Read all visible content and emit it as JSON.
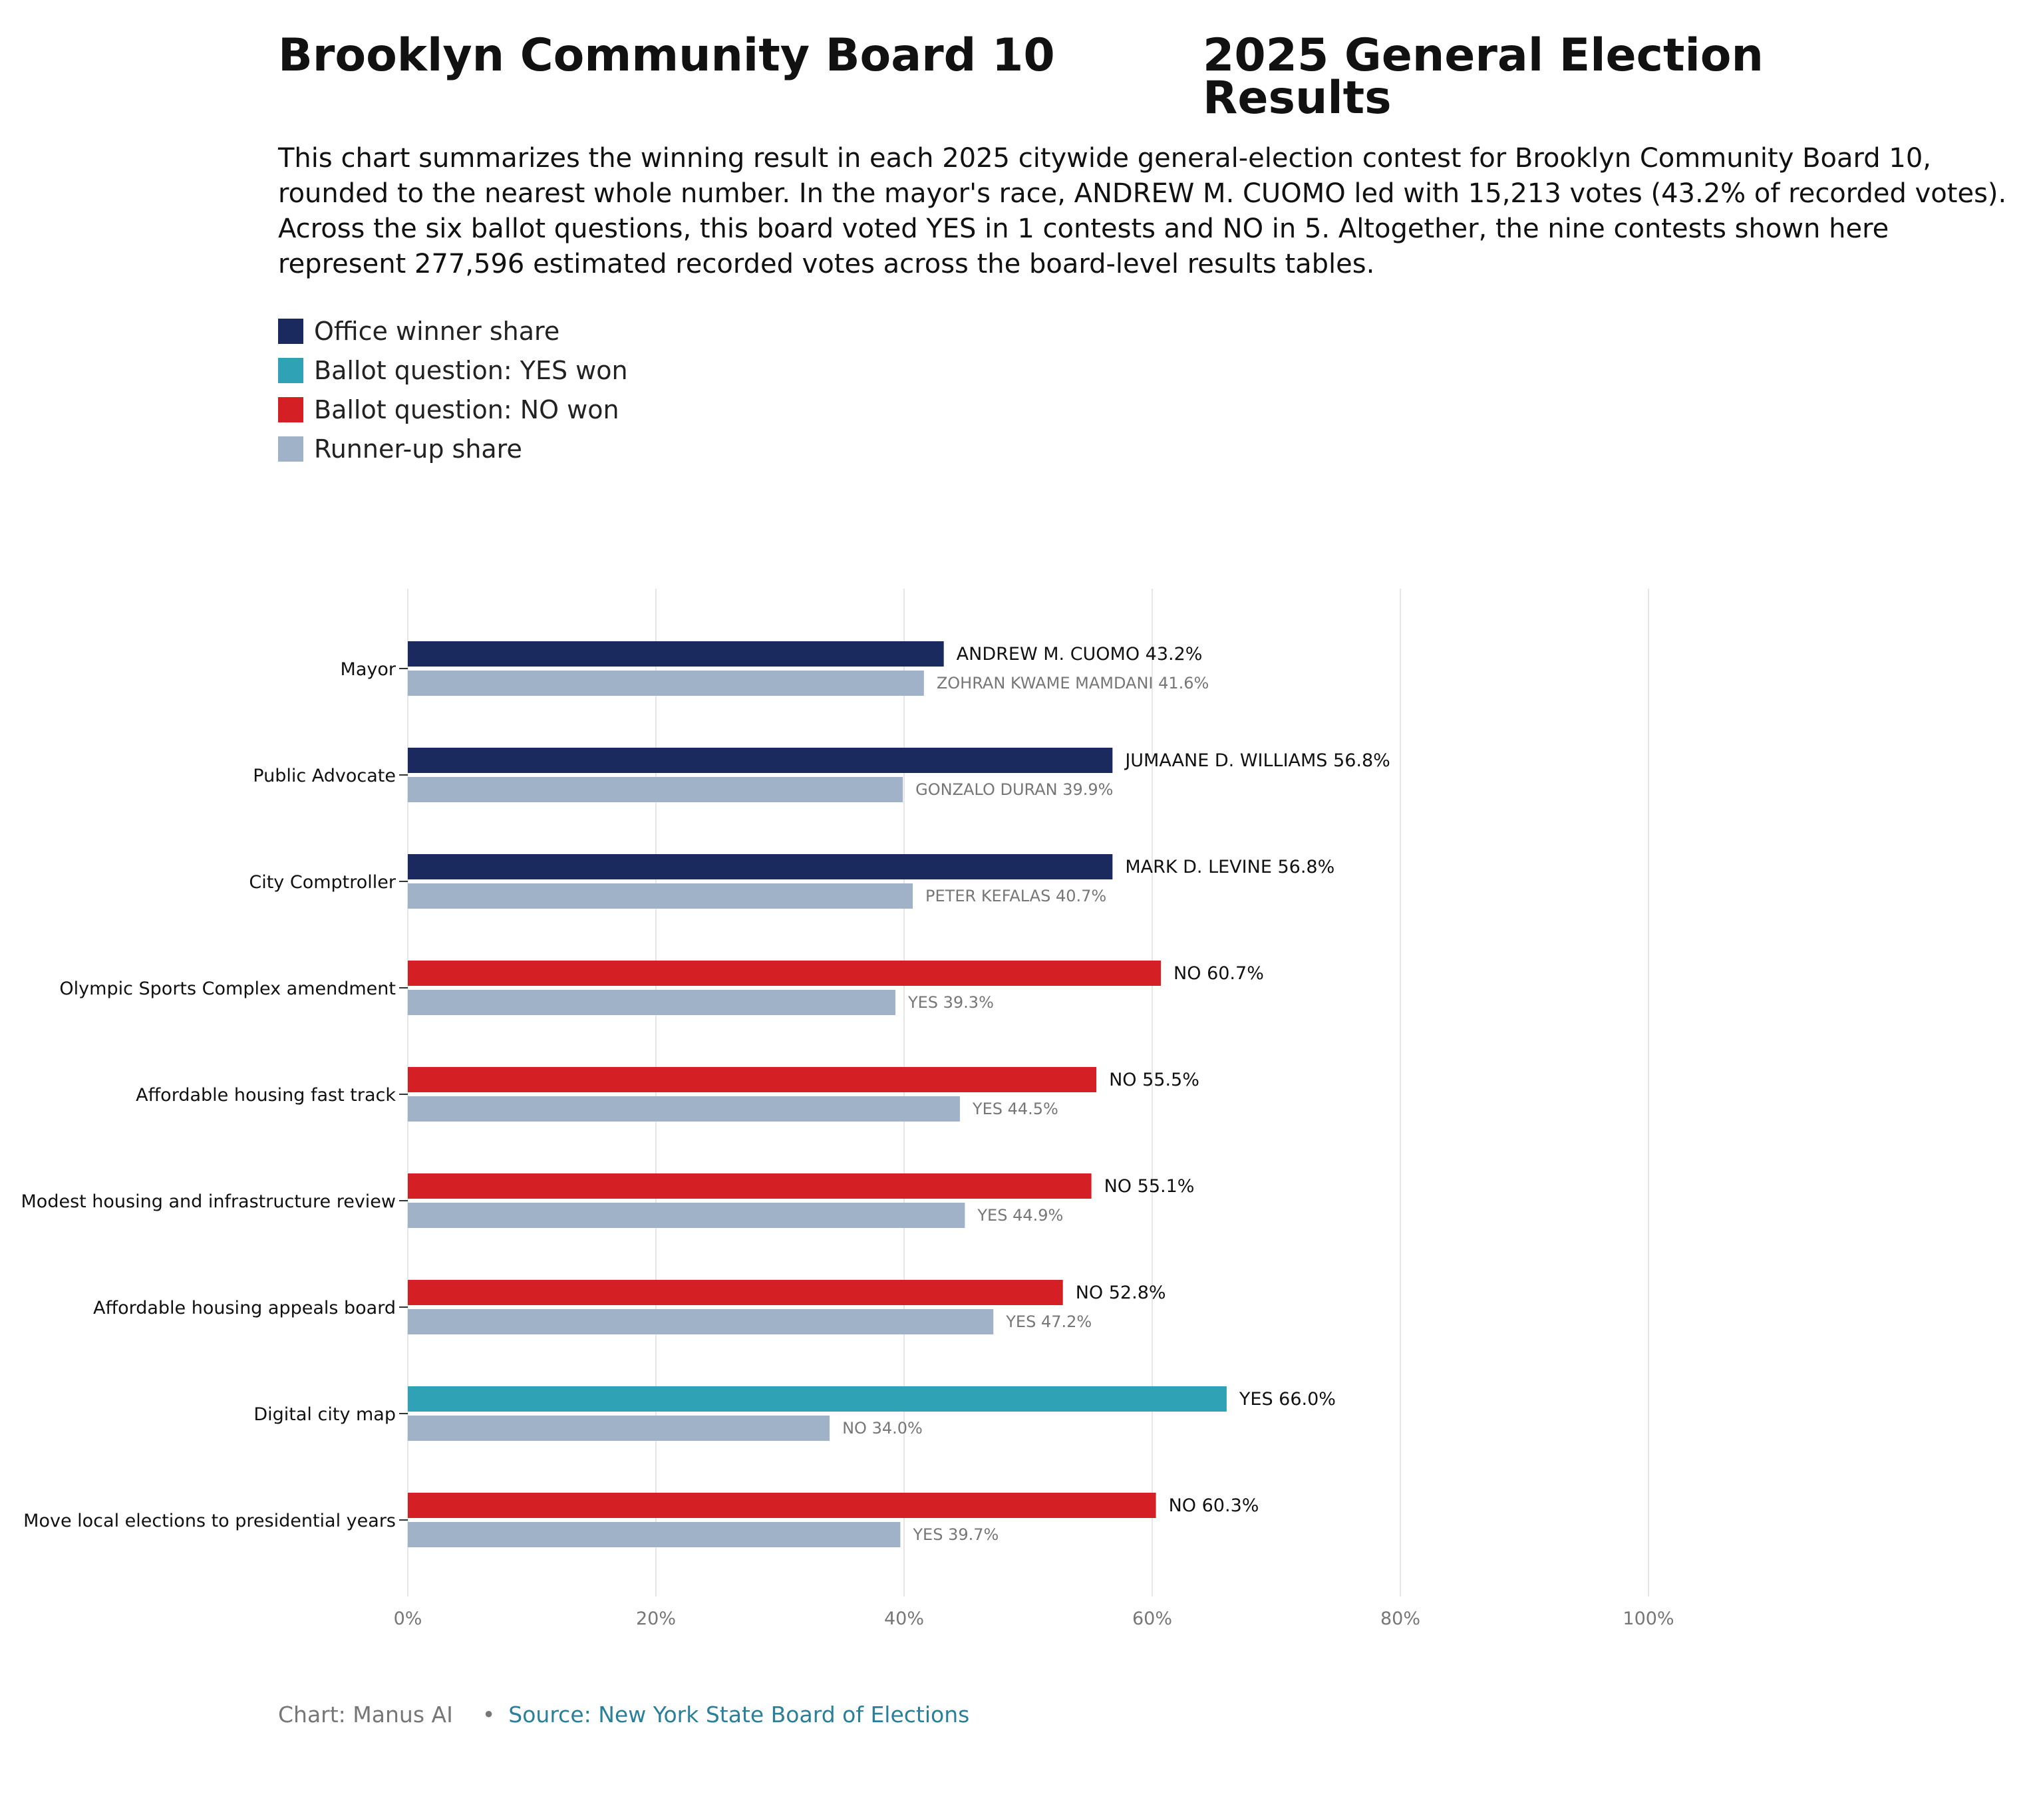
{
  "title_left": "Brooklyn Community Board 10",
  "title_right": "2025 General Election Results",
  "subtitle": "This chart summarizes the winning result in each 2025 citywide general-election contest for Brooklyn Community Board 10, rounded to the nearest whole number. In the mayor's race, ANDREW M. CUOMO led with 15,213 votes (43.2% of recorded votes). Across the six ballot questions, this board voted YES in 1 contests and NO in 5. Altogether, the nine contests shown here represent 277,596 estimated recorded votes across the board-level results tables.",
  "legend": [
    {
      "label": "Office winner share",
      "color": "#1b2a5e"
    },
    {
      "label": "Ballot question: YES won",
      "color": "#2fa3b5"
    },
    {
      "label": "Ballot question: NO won",
      "color": "#d42024"
    },
    {
      "label": "Runner-up share",
      "color": "#a0b2c8"
    }
  ],
  "footer": {
    "credit": "Chart: Manus AI",
    "separator": "•",
    "source": "Source: New York State Board of Elections"
  },
  "chart_data": {
    "type": "bar",
    "orientation": "horizontal",
    "xlim": [
      0,
      100
    ],
    "x_ticks": [
      "0%",
      "20%",
      "40%",
      "60%",
      "80%",
      "100%"
    ],
    "grid": "vertical",
    "colors": {
      "office": "#1b2a5e",
      "yes": "#2fa3b5",
      "no": "#d42024",
      "runner": "#a0b2c8",
      "winner_label": "#111111",
      "runner_label": "#777777",
      "tick_label": "#777777",
      "grid": "#e6e6e6"
    },
    "categories": [
      {
        "name": "Mayor",
        "kind": "office",
        "winner": {
          "label": "ANDREW M. CUOMO 43.2%",
          "value": 43.2
        },
        "runner_up": {
          "label": "ZOHRAN KWAME MAMDANI 41.6%",
          "value": 41.6
        }
      },
      {
        "name": "Public Advocate",
        "kind": "office",
        "winner": {
          "label": "JUMAANE D. WILLIAMS 56.8%",
          "value": 56.8
        },
        "runner_up": {
          "label": "GONZALO DURAN 39.9%",
          "value": 39.9
        }
      },
      {
        "name": "City Comptroller",
        "kind": "office",
        "winner": {
          "label": "MARK D. LEVINE 56.8%",
          "value": 56.8
        },
        "runner_up": {
          "label": "PETER KEFALAS 40.7%",
          "value": 40.7
        }
      },
      {
        "name": "Olympic Sports Complex amendment",
        "kind": "no",
        "winner": {
          "label": "NO 60.7%",
          "value": 60.7
        },
        "runner_up": {
          "label": "YES 39.3%",
          "value": 39.3
        }
      },
      {
        "name": "Affordable housing fast track",
        "kind": "no",
        "winner": {
          "label": "NO 55.5%",
          "value": 55.5
        },
        "runner_up": {
          "label": "YES 44.5%",
          "value": 44.5
        }
      },
      {
        "name": "Modest housing and infrastructure review",
        "kind": "no",
        "winner": {
          "label": "NO 55.1%",
          "value": 55.1
        },
        "runner_up": {
          "label": "YES 44.9%",
          "value": 44.9
        }
      },
      {
        "name": "Affordable housing appeals board",
        "kind": "no",
        "winner": {
          "label": "NO 52.8%",
          "value": 52.8
        },
        "runner_up": {
          "label": "YES 47.2%",
          "value": 47.2
        }
      },
      {
        "name": "Digital city map",
        "kind": "yes",
        "winner": {
          "label": "YES 66.0%",
          "value": 66.0
        },
        "runner_up": {
          "label": "NO 34.0%",
          "value": 34.0
        }
      },
      {
        "name": "Move local elections to presidential years",
        "kind": "no",
        "winner": {
          "label": "NO 60.3%",
          "value": 60.3
        },
        "runner_up": {
          "label": "YES 39.7%",
          "value": 39.7
        }
      }
    ]
  }
}
